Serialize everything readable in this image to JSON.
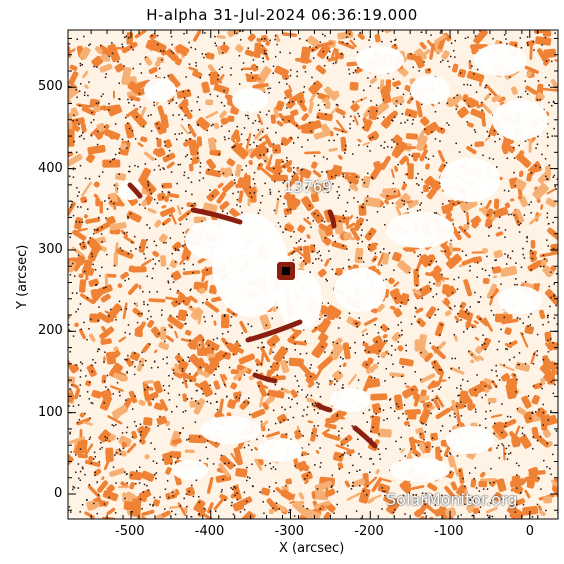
{
  "title": "H-alpha 31-Jul-2024 06:36:19.000",
  "x_axis": {
    "label": "X (arcsec)",
    "ticks": [
      "-500",
      "-400",
      "-300",
      "-200",
      "-100",
      "0"
    ]
  },
  "y_axis": {
    "label": "Y (arcsec)",
    "ticks": [
      "0",
      "100",
      "200",
      "300",
      "400",
      "500"
    ]
  },
  "region_label": "13769",
  "watermark": "SolarMonitor.org",
  "colors": {
    "background": "#fff3e6",
    "granule": "#f08236",
    "granule_light": "#f7b074",
    "filament": "#8a1f10",
    "speckle": "#2a140c"
  }
}
